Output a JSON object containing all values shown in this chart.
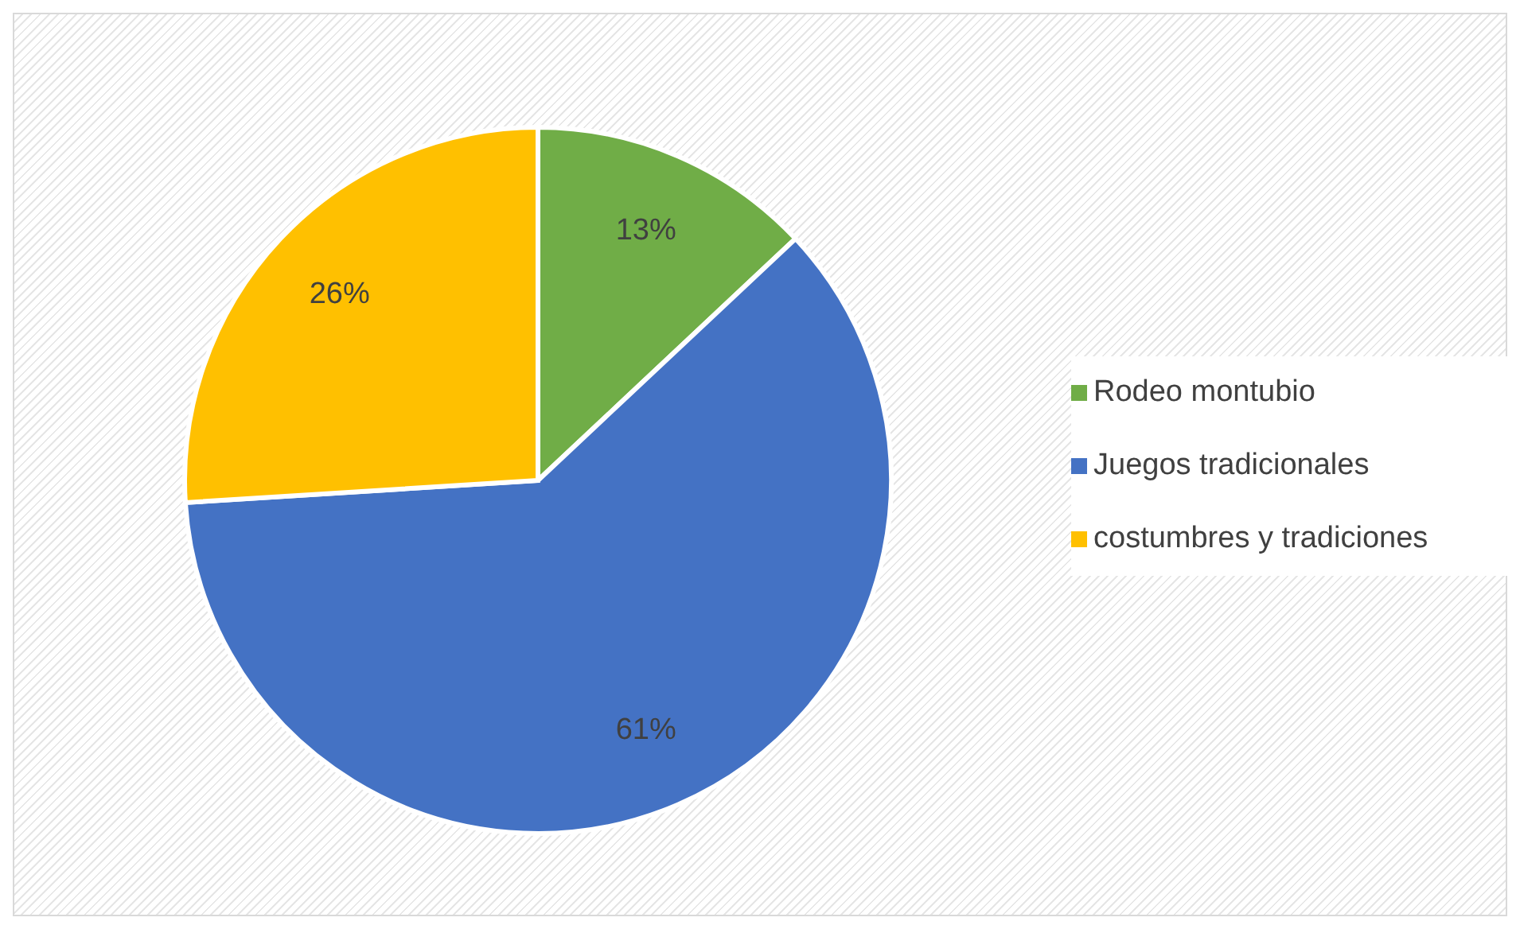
{
  "chart_data": {
    "type": "pie",
    "categories": [
      "Rodeo montubio",
      "Juegos tradicionales",
      "costumbres y tradiciones"
    ],
    "values": [
      13,
      61,
      26
    ],
    "value_labels": [
      "13%",
      "61%",
      "26%"
    ],
    "colors": [
      "#70ad47",
      "#4472c4",
      "#ffc000"
    ],
    "legend": "right"
  }
}
